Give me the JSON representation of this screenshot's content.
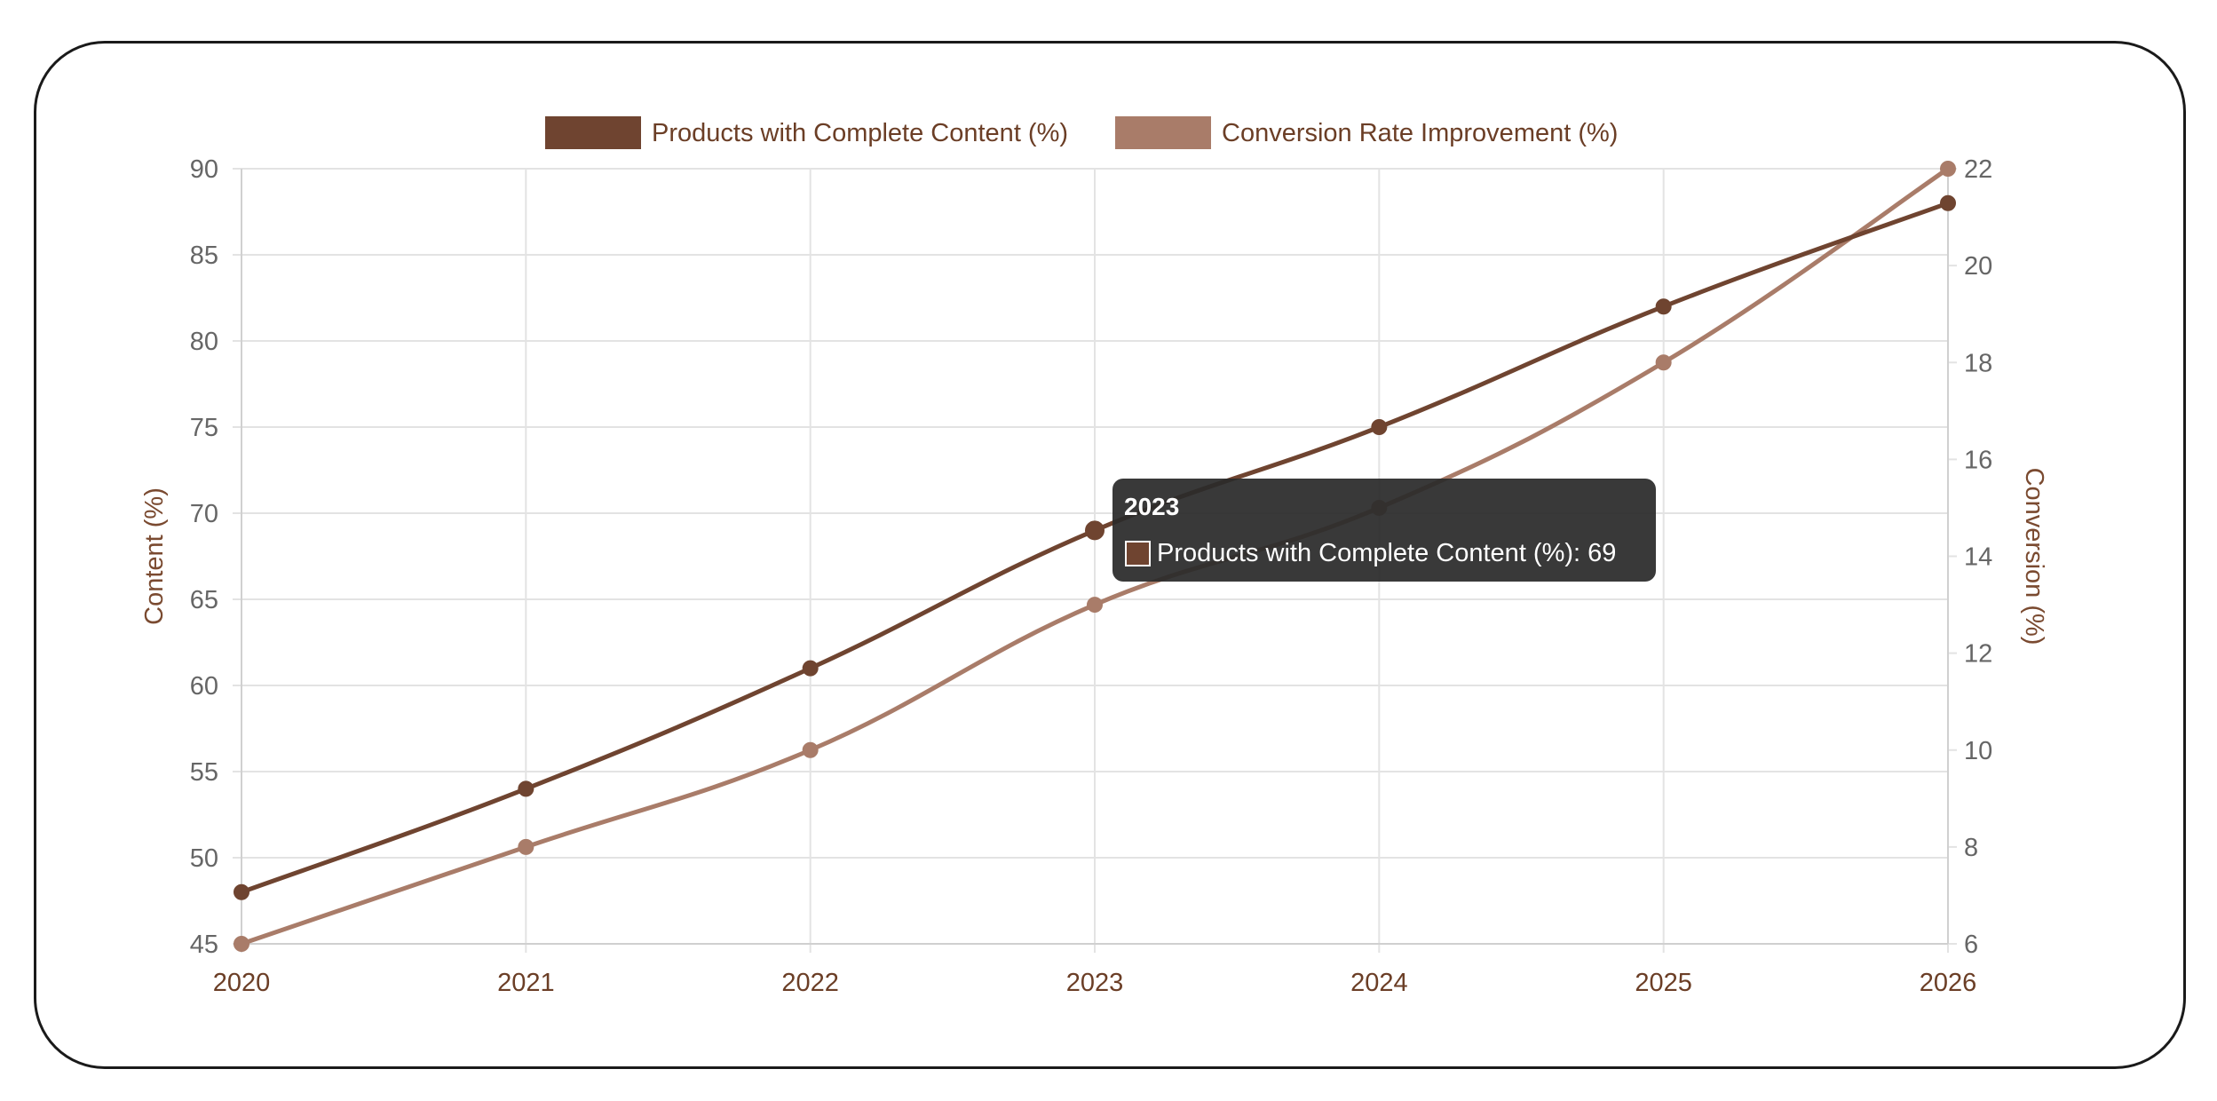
{
  "chart_data": {
    "type": "line",
    "x": [
      "2020",
      "2021",
      "2022",
      "2023",
      "2024",
      "2025",
      "2026"
    ],
    "y_left": {
      "label": "Content (%)",
      "lim": [
        45,
        90
      ],
      "ticks": [
        45,
        50,
        55,
        60,
        65,
        70,
        75,
        80,
        85,
        90
      ]
    },
    "y_right": {
      "label": "Conversion (%)",
      "lim": [
        6,
        22
      ],
      "ticks": [
        6,
        8,
        10,
        12,
        14,
        16,
        18,
        20,
        22
      ]
    },
    "series": [
      {
        "name": "Products with Complete Content (%)",
        "axis": "left",
        "color": "#6f4430",
        "values": [
          48,
          54,
          61,
          69,
          75,
          82,
          88
        ]
      },
      {
        "name": "Conversion Rate Improvement (%)",
        "axis": "right",
        "color": "#a97c69",
        "values": [
          6,
          8,
          10,
          13,
          15,
          18,
          22
        ]
      }
    ],
    "grid": true,
    "legend": "top-center",
    "tooltip": {
      "title": "2023",
      "label": "Products with Complete Content (%): 69",
      "point_index": 3,
      "series_index": 0
    }
  }
}
